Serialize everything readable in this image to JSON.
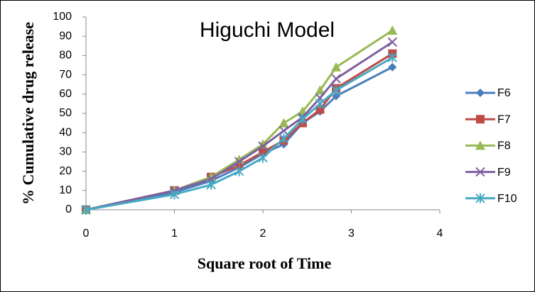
{
  "chart_data": {
    "type": "line",
    "title": "Higuchi Model",
    "x_label": "Square root of Time",
    "y_label": "% Cumulative drug release",
    "x": [
      0,
      1,
      1.414,
      1.732,
      2,
      2.236,
      2.449,
      2.646,
      2.828,
      3.464
    ],
    "series": [
      {
        "name": "F6",
        "color": "#4a7ebb",
        "marker": "diamond",
        "values": [
          0,
          9,
          15,
          22,
          29,
          34,
          45,
          51,
          59,
          74
        ]
      },
      {
        "name": "F7",
        "color": "#be4b48",
        "marker": "square",
        "values": [
          0,
          10,
          17,
          23,
          30,
          36,
          45,
          52,
          63,
          81
        ]
      },
      {
        "name": "F8",
        "color": "#98b954",
        "marker": "triangle",
        "values": [
          0,
          10,
          17,
          26,
          34,
          45,
          51,
          62,
          74,
          93
        ]
      },
      {
        "name": "F9",
        "color": "#7d60a0",
        "marker": "x",
        "values": [
          0,
          10,
          16,
          25,
          33,
          41,
          48,
          58,
          68,
          87
        ]
      },
      {
        "name": "F10",
        "color": "#46aac5",
        "marker": "asterisk",
        "values": [
          0,
          8,
          13,
          20,
          27,
          37,
          47,
          55,
          62,
          79
        ]
      }
    ],
    "xlim": [
      0,
      4
    ],
    "xticks": [
      0,
      1,
      2,
      3,
      4
    ],
    "ylim": [
      0,
      100
    ],
    "yticks": [
      0,
      10,
      20,
      30,
      40,
      50,
      60,
      70,
      80,
      90,
      100
    ],
    "legend": "right"
  }
}
